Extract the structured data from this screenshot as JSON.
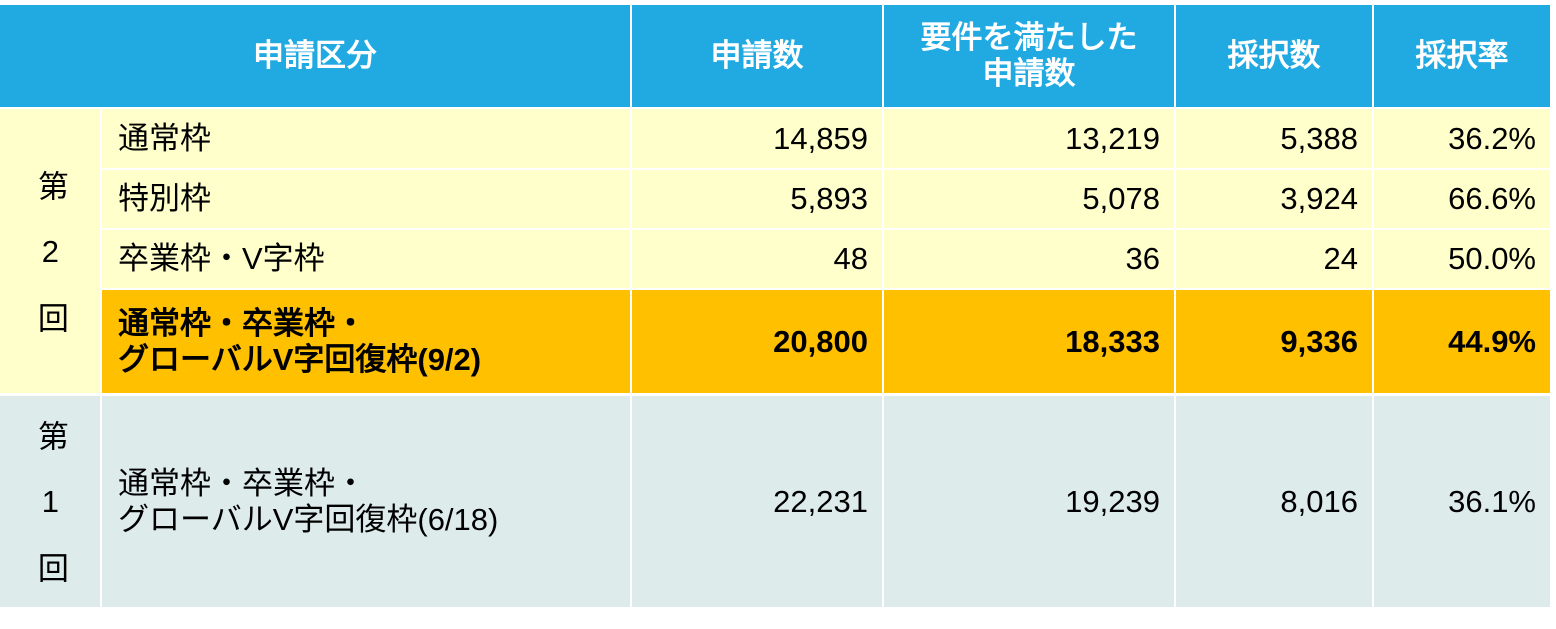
{
  "table": {
    "header": [
      "申請区分",
      "申請数",
      "要件を満たした\n申請数",
      "採択数",
      "採択率"
    ],
    "groups": [
      {
        "label": "第2回",
        "rows": [
          [
            "通常枠",
            "14,859",
            "13,219",
            "5,388",
            "36.2%"
          ],
          [
            "特別枠",
            "5,893",
            "5,078",
            "3,924",
            "66.6%"
          ],
          [
            "卒業枠・V字枠",
            "48",
            "36",
            "24",
            "50.0%"
          ],
          [
            "通常枠・卒業枠・\nグローバルV字回復枠(9/2)",
            "20,800",
            "18,333",
            "9,336",
            "44.9%"
          ]
        ]
      },
      {
        "label": "第1回",
        "rows": [
          [
            "通常枠・卒業枠・\nグローバルV字回復枠(6/18)",
            "22,231",
            "19,239",
            "8,016",
            "36.1%"
          ]
        ]
      }
    ]
  }
}
